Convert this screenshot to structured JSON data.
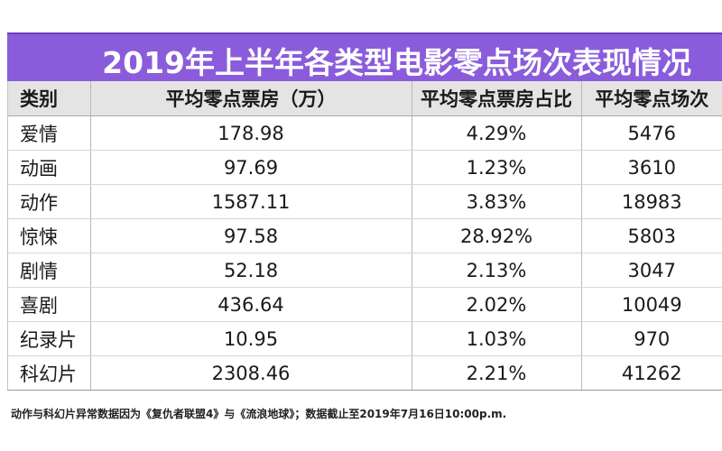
{
  "title": "2019年上半年各类型电影零点场次表现情况",
  "table": {
    "headers": [
      "类别",
      "平均零点票房（万）",
      "平均零点票房占比",
      "平均零点场次"
    ],
    "rows": [
      [
        "爱情",
        "178.98",
        "4.29%",
        "5476"
      ],
      [
        "动画",
        "97.69",
        "1.23%",
        "3610"
      ],
      [
        "动作",
        "1587.11",
        "3.83%",
        "18983"
      ],
      [
        "惊悚",
        "97.58",
        "28.92%",
        "5803"
      ],
      [
        "剧情",
        "52.18",
        "2.13%",
        "3047"
      ],
      [
        "喜剧",
        "436.64",
        "2.02%",
        "10049"
      ],
      [
        "纪录片",
        "10.95",
        "1.03%",
        "970"
      ],
      [
        "科幻片",
        "2308.46",
        "2.21%",
        "41262"
      ]
    ]
  },
  "footnote": "动作与科幻片异常数据因为《复仇者联盟4》与《流浪地球》；数据截止至2019年7月16日10:00p.m.",
  "colors": {
    "banner": "#8a5cdb",
    "header_bg": "#e4e4e4"
  }
}
